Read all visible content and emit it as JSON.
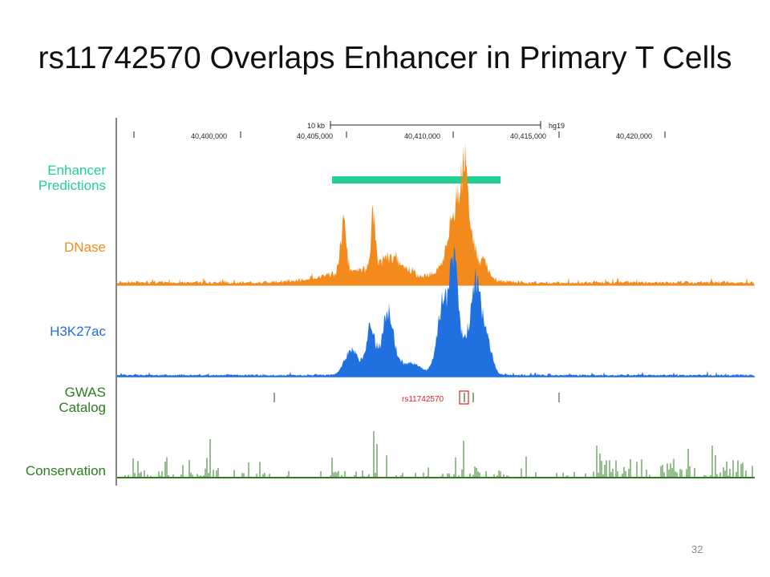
{
  "slide": {
    "title": "rs11742570 Overlaps Enhancer in Primary T Cells",
    "slide_number": "32"
  },
  "ruler": {
    "scale_label": "10 kb",
    "assembly": "hg19",
    "positions": [
      "40,400,000",
      "40,405,000",
      "40,410,000",
      "40,415,000",
      "40,420,000"
    ]
  },
  "tracks": [
    {
      "id": "enhancer",
      "label_lines": [
        "Enhancer",
        "Predictions"
      ],
      "color": "#22d08f"
    },
    {
      "id": "dnase",
      "label_lines": [
        "DNase"
      ],
      "color": "#f28a1e"
    },
    {
      "id": "h3k27ac",
      "label_lines": [
        "H3K27ac"
      ],
      "color": "#2170e0"
    },
    {
      "id": "gwas",
      "label_lines": [
        "GWAS",
        "Catalog"
      ],
      "color": "#2e7d1e"
    },
    {
      "id": "conservation",
      "label_lines": [
        "Conservation"
      ],
      "color": "#2e7d1e"
    }
  ],
  "gwas": {
    "highlight_snp": "rs11742570",
    "highlight_color": "#e02020"
  }
}
